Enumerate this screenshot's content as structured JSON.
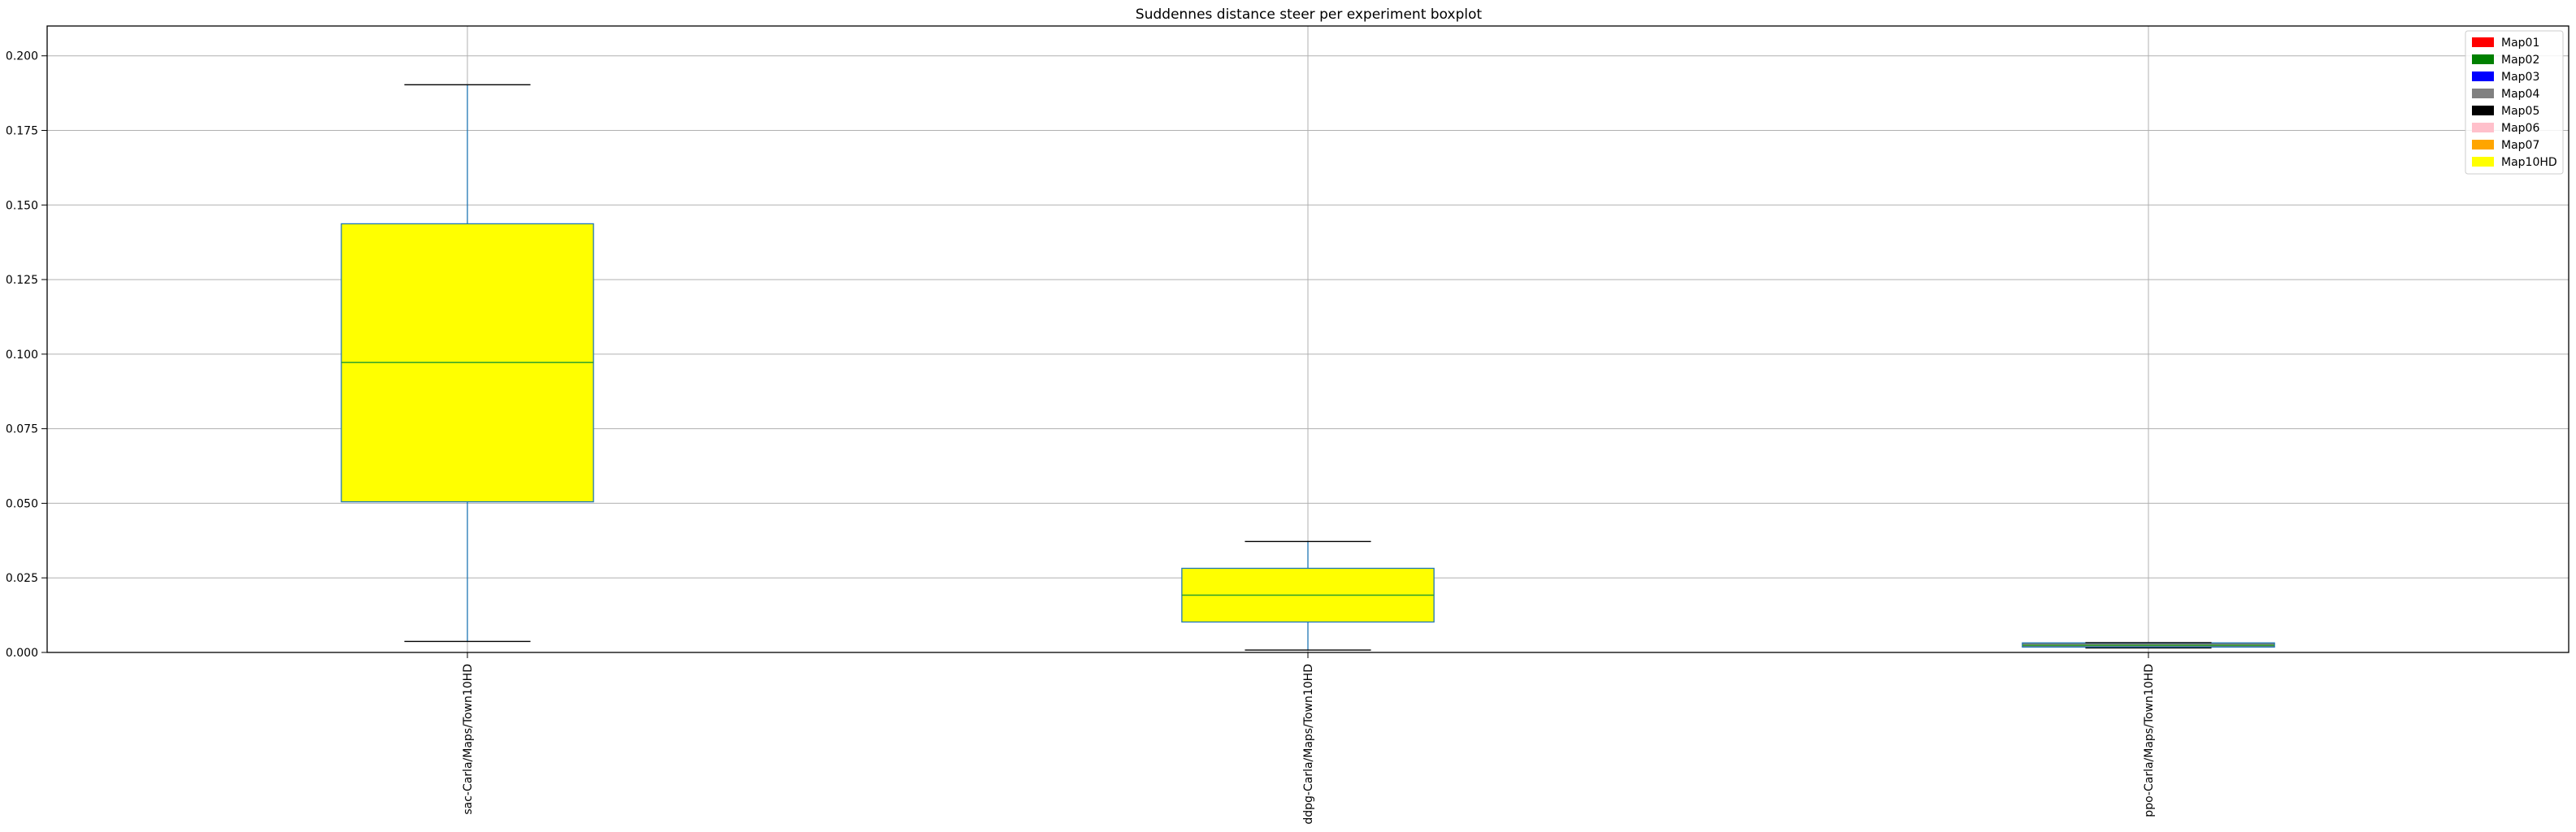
{
  "chart_data": {
    "type": "boxplot",
    "title": "Suddennes distance steer per experiment boxplot",
    "xlabel": "",
    "ylabel": "",
    "ylim": [
      0,
      0.21
    ],
    "yticks": [
      "0.000",
      "0.025",
      "0.050",
      "0.075",
      "0.100",
      "0.125",
      "0.150",
      "0.175",
      "0.200"
    ],
    "grid": true,
    "legend_position": "top-right",
    "categories": [
      "sac-Carla/Maps/Town10HD",
      "ddpg-Carla/Maps/Town10HD",
      "ppo-Carla/Maps/Town10HD"
    ],
    "boxes": [
      {
        "whisker_low": 0.0037,
        "q1": 0.0505,
        "median": 0.0972,
        "q3": 0.1437,
        "whisker_high": 0.1903,
        "fill": "#ffff00"
      },
      {
        "whisker_low": 0.0008,
        "q1": 0.0102,
        "median": 0.0192,
        "q3": 0.0282,
        "whisker_high": 0.0372,
        "fill": "#ffff00"
      },
      {
        "whisker_low": 0.0015,
        "q1": 0.0018,
        "median": 0.0024,
        "q3": 0.0032,
        "whisker_high": 0.0033,
        "fill": "#808080"
      }
    ],
    "legend": [
      {
        "label": "Map01",
        "color": "#ff0000"
      },
      {
        "label": "Map02",
        "color": "#008000"
      },
      {
        "label": "Map03",
        "color": "#0000ff"
      },
      {
        "label": "Map04",
        "color": "#808080"
      },
      {
        "label": "Map05",
        "color": "#000000"
      },
      {
        "label": "Map06",
        "color": "#ffc0cb"
      },
      {
        "label": "Map07",
        "color": "#ffa500"
      },
      {
        "label": "Map10HD",
        "color": "#ffff00"
      }
    ],
    "colors": {
      "box_edge": "#1f77b4",
      "median": "#2ca02c",
      "whisker": "#1f77b4",
      "cap": "#000000",
      "grid": "#b0b0b0"
    }
  }
}
